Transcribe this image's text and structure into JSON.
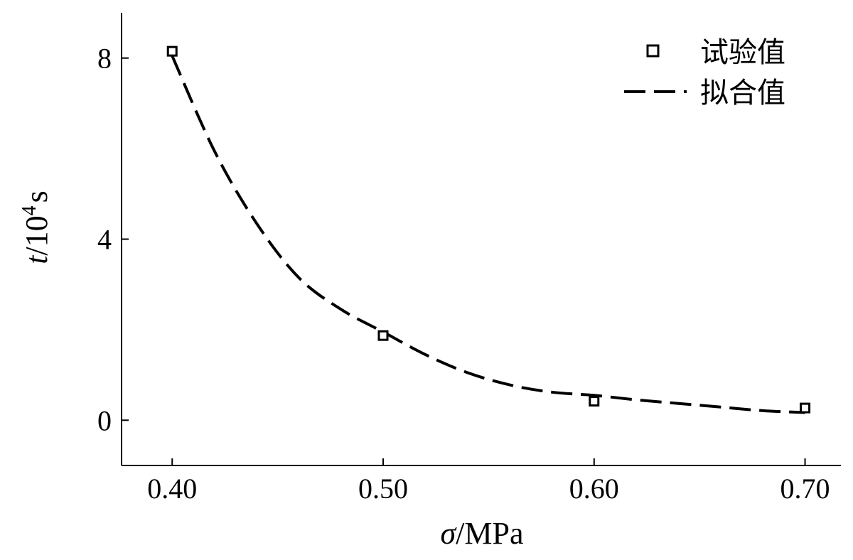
{
  "chart_data": {
    "type": "scatter",
    "xlabel_symbol": "σ",
    "xlabel_unit": "/MPa",
    "ylabel_symbol": "t",
    "ylabel_unit_base": "/10",
    "ylabel_unit_exp": "4",
    "ylabel_unit_tail": "s",
    "xlim": [
      0.376,
      0.717
    ],
    "ylim": [
      -1.0,
      9.0
    ],
    "x_ticks": [
      0.4,
      0.5,
      0.6,
      0.7
    ],
    "x_tick_labels": [
      "0.40",
      "0.50",
      "0.60",
      "0.70"
    ],
    "y_ticks": [
      0,
      4,
      8
    ],
    "y_tick_labels": [
      "0",
      "4",
      "8"
    ],
    "legend_position": "top-right",
    "series": [
      {
        "name": "试验值",
        "kind": "markers",
        "marker": "square",
        "x": [
          0.4,
          0.5,
          0.6,
          0.7
        ],
        "y": [
          8.15,
          1.87,
          0.42,
          0.27
        ]
      },
      {
        "name": "拟合值",
        "kind": "dashed-line",
        "x": [
          0.4,
          0.42,
          0.44,
          0.46,
          0.48,
          0.5,
          0.52,
          0.54,
          0.56,
          0.58,
          0.6,
          0.62,
          0.64,
          0.66,
          0.68,
          0.7
        ],
        "y": [
          8.05,
          5.95,
          4.35,
          3.15,
          2.45,
          1.95,
          1.45,
          1.05,
          0.78,
          0.62,
          0.55,
          0.45,
          0.37,
          0.29,
          0.21,
          0.17
        ]
      }
    ]
  }
}
